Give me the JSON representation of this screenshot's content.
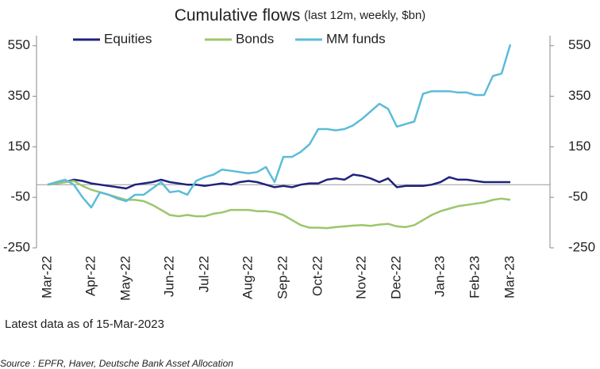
{
  "chart_data": {
    "type": "line",
    "title": "Cumulative flows",
    "subtitle": "(last 12m, weekly, $bn)",
    "categories": [
      "Mar-22",
      null,
      null,
      null,
      null,
      "Apr-22",
      null,
      null,
      null,
      "May-22",
      null,
      null,
      null,
      null,
      "Jun-22",
      null,
      null,
      null,
      "Jul-22",
      null,
      null,
      null,
      null,
      "Aug-22",
      null,
      null,
      null,
      "Sep-22",
      null,
      null,
      null,
      "Oct-22",
      null,
      null,
      null,
      null,
      "Nov-22",
      null,
      null,
      null,
      "Dec-22",
      null,
      null,
      null,
      null,
      "Jan-23",
      null,
      null,
      null,
      "Feb-23",
      null,
      null,
      null,
      "Mar-23"
    ],
    "series": [
      {
        "name": "Equities",
        "color": "#1f237a",
        "values": [
          0,
          5,
          10,
          20,
          15,
          5,
          0,
          -5,
          -10,
          -15,
          0,
          5,
          10,
          20,
          10,
          5,
          0,
          0,
          -5,
          0,
          5,
          0,
          10,
          15,
          10,
          0,
          -10,
          -5,
          -10,
          0,
          5,
          5,
          20,
          25,
          20,
          40,
          35,
          25,
          10,
          25,
          -10,
          -5,
          -5,
          -5,
          0,
          10,
          30,
          20,
          20,
          15,
          10,
          10,
          10,
          10
        ]
      },
      {
        "name": "Bonds",
        "color": "#9bc66b",
        "values": [
          0,
          5,
          10,
          15,
          -5,
          -20,
          -30,
          -40,
          -50,
          -60,
          -60,
          -65,
          -80,
          -100,
          -120,
          -125,
          -120,
          -125,
          -125,
          -115,
          -110,
          -100,
          -100,
          -100,
          -105,
          -105,
          -110,
          -120,
          -140,
          -160,
          -170,
          -170,
          -172,
          -168,
          -165,
          -162,
          -160,
          -163,
          -158,
          -155,
          -165,
          -168,
          -160,
          -140,
          -120,
          -105,
          -95,
          -85,
          -80,
          -75,
          -70,
          -60,
          -55,
          -60
        ]
      },
      {
        "name": "MM funds",
        "color": "#5bbcd9",
        "values": [
          0,
          10,
          20,
          0,
          -50,
          -90,
          -30,
          -40,
          -55,
          -65,
          -40,
          -40,
          -15,
          10,
          -30,
          -25,
          -40,
          15,
          30,
          40,
          60,
          55,
          50,
          45,
          50,
          70,
          10,
          110,
          110,
          130,
          160,
          220,
          220,
          215,
          220,
          235,
          260,
          290,
          320,
          300,
          230,
          240,
          250,
          360,
          370,
          370,
          370,
          365,
          365,
          355,
          355,
          430,
          440,
          555
        ]
      }
    ],
    "ylim": [
      -250,
      590
    ],
    "yticks": [
      -250,
      -50,
      150,
      350,
      550
    ],
    "legend": "top",
    "notes": [
      "Latest data as of 15-Mar-2023",
      "Source : EPFR, Haver, Deutsche Bank Asset Allocation"
    ]
  }
}
